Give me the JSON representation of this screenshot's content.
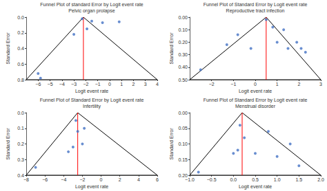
{
  "chart_data": [
    {
      "type": "scatter",
      "title": "Funnel Plot of standard Error by Logit event rate",
      "subtitle": "Pelvic organ prolapse",
      "xlabel": "Logit event rate",
      "ylabel": "Standard Error",
      "xlim": [
        -7,
        4
      ],
      "ylim": [
        0.8,
        0.0
      ],
      "xticks": [
        {
          "value": -6,
          "label": "−6"
        },
        {
          "value": -5,
          "label": "−5"
        },
        {
          "value": -4,
          "label": "−4"
        },
        {
          "value": -3,
          "label": "−3"
        },
        {
          "value": -2,
          "label": "−2"
        },
        {
          "value": -1,
          "label": "−1"
        },
        0,
        1,
        2,
        3,
        4
      ],
      "yticks": [
        {
          "value": 0.0,
          "label": "0.0"
        },
        0.2,
        0.4,
        0.6,
        0.8
      ],
      "grid": false,
      "series": [
        {
          "type": "line",
          "color": "black",
          "x": [
            -7,
            -2.2,
            4,
            -7
          ],
          "values": [
            0.8,
            0.0,
            0.8,
            0.8
          ]
        },
        {
          "type": "line",
          "color": "red",
          "x": [
            -2.2,
            -2.2
          ],
          "values": [
            0.0,
            0.8
          ]
        },
        {
          "type": "scatter",
          "color": "#4472C4",
          "x": [
            -6.0,
            -5.8,
            -3.0,
            -2.3,
            -1.9,
            -1.5,
            -0.6,
            0.8
          ],
          "values": [
            0.72,
            0.78,
            0.22,
            0.02,
            0.15,
            0.05,
            0.07,
            0.06
          ]
        }
      ]
    },
    {
      "type": "scatter",
      "title": "Funnel Plot of Standard Error by Logit event rate",
      "subtitle": "Reproductive tract infection",
      "xlabel": "Logit event rate",
      "ylabel": "Standard Error",
      "xlim": [
        -3,
        3
      ],
      "ylim": [
        0.5,
        0.0
      ],
      "xticks": [
        {
          "value": -2,
          "label": "−2"
        },
        {
          "value": -1,
          "label": "−1"
        },
        0,
        1,
        2,
        3
      ],
      "yticks": [
        {
          "value": 0.0,
          "label": "0.00"
        },
        {
          "value": 0.1,
          "label": "0.10"
        },
        {
          "value": 0.2,
          "label": "0.20"
        },
        {
          "value": 0.3,
          "label": "0.30"
        },
        {
          "value": 0.4,
          "label": "0.40"
        },
        {
          "value": 0.5,
          "label": "0.50"
        }
      ],
      "grid": false,
      "series": [
        {
          "type": "line",
          "color": "black",
          "x": [
            -3,
            0.5,
            3,
            -3
          ],
          "values": [
            0.5,
            0.0,
            0.5,
            0.5
          ]
        },
        {
          "type": "line",
          "color": "red",
          "x": [
            0.5,
            0.5
          ],
          "values": [
            0.0,
            0.5
          ]
        },
        {
          "type": "scatter",
          "color": "#4472C4",
          "x": [
            -2.5,
            -1.3,
            -0.8,
            -0.2,
            0.5,
            0.8,
            1.0,
            1.3,
            1.5,
            1.9,
            2.1,
            2.3
          ],
          "values": [
            0.42,
            0.22,
            0.14,
            0.25,
            0.02,
            0.08,
            0.2,
            0.1,
            0.25,
            0.2,
            0.25,
            0.28
          ]
        }
      ]
    },
    {
      "type": "scatter",
      "title": "Funnel Plot of Standard Error by Logit event rate",
      "subtitle": "Infertility",
      "xlabel": "Logit event rate",
      "ylabel": "Standard Error",
      "xlim": [
        -8,
        6
      ],
      "ylim": [
        0.4,
        0.0
      ],
      "xticks": [
        {
          "value": -8,
          "label": "−8"
        },
        {
          "value": -6,
          "label": "−6"
        },
        {
          "value": -4,
          "label": "−4"
        },
        {
          "value": -2,
          "label": "−2"
        },
        0,
        2,
        4,
        6
      ],
      "yticks": [
        {
          "value": 0.0,
          "label": "0.0"
        },
        0.1,
        0.2,
        0.3,
        0.4
      ],
      "grid": false,
      "series": [
        {
          "type": "line",
          "color": "black",
          "x": [
            -8,
            -2.5,
            6,
            -8
          ],
          "values": [
            0.4,
            0.0,
            0.4,
            0.4
          ]
        },
        {
          "type": "line",
          "color": "red",
          "x": [
            -2.5,
            -2.5
          ],
          "values": [
            0.0,
            0.4
          ]
        },
        {
          "type": "scatter",
          "color": "#4472C4",
          "x": [
            -7.0,
            -3.5,
            -3.0,
            -2.7,
            -2.5,
            -2.0,
            -1.8
          ],
          "values": [
            0.35,
            0.25,
            0.22,
            0.05,
            0.12,
            0.2,
            0.1
          ]
        }
      ]
    },
    {
      "type": "scatter",
      "title": "Funnel Plot of Standard Error by Logit event rate",
      "subtitle": "Menstrual disorder",
      "xlabel": "Logit event rate",
      "ylabel": "Standard Error",
      "xlim": [
        -1.0,
        2.0
      ],
      "ylim": [
        0.2,
        0.0
      ],
      "xticks": [
        {
          "value": -1.0,
          "label": "−1.0"
        },
        {
          "value": -0.5,
          "label": "−0.5"
        },
        {
          "value": 0.0,
          "label": "0.0"
        },
        0.5,
        {
          "value": 1.0,
          "label": "1.0"
        },
        1.5,
        {
          "value": 2.0,
          "label": "2.0"
        }
      ],
      "yticks": [
        {
          "value": 0.0,
          "label": "0.00"
        },
        0.05,
        {
          "value": 0.1,
          "label": "0.10"
        },
        0.15,
        {
          "value": 0.2,
          "label": "0.20"
        }
      ],
      "grid": false,
      "series": [
        {
          "type": "line",
          "color": "black",
          "x": [
            -1.0,
            0.2,
            2.0,
            -1.0
          ],
          "values": [
            0.2,
            0.0,
            0.2,
            0.2
          ]
        },
        {
          "type": "line",
          "color": "red",
          "x": [
            0.2,
            0.2
          ],
          "values": [
            0.0,
            0.2
          ]
        },
        {
          "type": "scatter",
          "color": "#4472C4",
          "x": [
            -0.8,
            0.0,
            0.1,
            0.15,
            0.25,
            0.5,
            0.8,
            1.0,
            1.3,
            1.5
          ],
          "values": [
            0.19,
            0.13,
            0.12,
            0.04,
            0.08,
            0.13,
            0.06,
            0.14,
            0.1,
            0.17
          ]
        }
      ]
    }
  ]
}
